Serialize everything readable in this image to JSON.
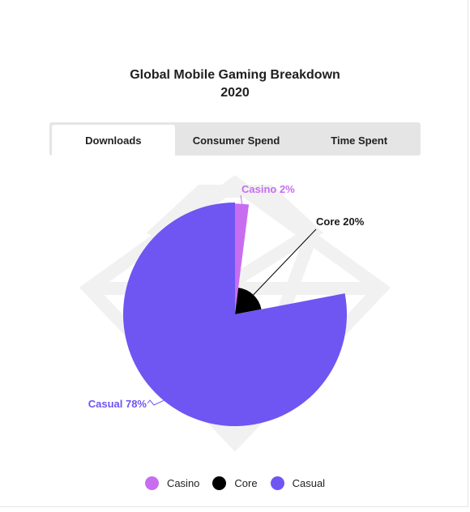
{
  "title": {
    "line1": "Global Mobile Gaming Breakdown",
    "line2": "2020"
  },
  "tabs": [
    {
      "label": "Downloads",
      "active": true
    },
    {
      "label": "Consumer Spend",
      "active": false
    },
    {
      "label": "Time Spent",
      "active": false
    }
  ],
  "chart_data": {
    "type": "pie",
    "style": "rose / variable-radius pie",
    "categories": [
      "Casino",
      "Core",
      "Casual"
    ],
    "values": [
      2,
      20,
      78
    ],
    "labels": [
      "Casino 2%",
      "Core 20%",
      "Casual 78%"
    ],
    "colors": [
      "#c86df0",
      "#000000",
      "#6f55f2"
    ],
    "radius_scale": [
      0.99,
      0.24,
      1.0
    ],
    "legend_position": "bottom"
  },
  "legend": [
    {
      "label": "Casino",
      "color": "#c86df0"
    },
    {
      "label": "Core",
      "color": "#000000"
    },
    {
      "label": "Casual",
      "color": "#6f55f2"
    }
  ]
}
